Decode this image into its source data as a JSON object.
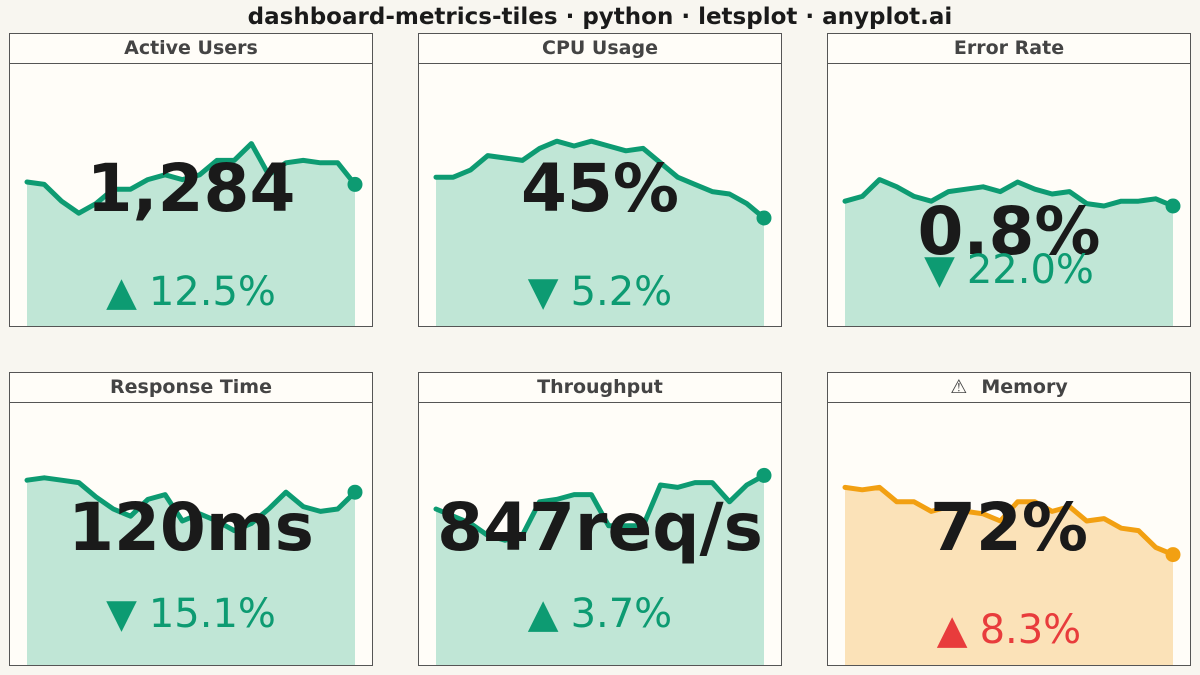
{
  "title": "dashboard-metrics-tiles · python · letsplot · anyplot.ai",
  "colors": {
    "normal_line": "#0d9b72",
    "normal_fill": "#c0e6d6",
    "warn_line": "#f2a012",
    "warn_fill": "#fbe2b8",
    "delta_good": "#0d9b72",
    "delta_bad": "#e83c3c"
  },
  "chart_data": [
    {
      "type": "area",
      "title": "Active Users",
      "value": "1,284",
      "delta": "12.5%",
      "direction": "up",
      "delta_status": "good",
      "status": "normal",
      "ylim": [
        0,
        10
      ],
      "values": [
        6.0,
        5.9,
        5.2,
        4.7,
        5.1,
        5.7,
        5.7,
        6.1,
        6.3,
        6.1,
        6.3,
        6.9,
        6.9,
        7.6,
        6.3,
        6.8,
        6.9,
        6.8,
        6.8,
        5.9
      ]
    },
    {
      "type": "area",
      "title": "CPU Usage",
      "value": "45%",
      "delta": "5.2%",
      "direction": "down",
      "delta_status": "good",
      "status": "normal",
      "ylim": [
        0,
        10
      ],
      "values": [
        6.2,
        6.2,
        6.5,
        7.1,
        7.0,
        6.9,
        7.4,
        7.7,
        7.5,
        7.7,
        7.5,
        7.3,
        7.4,
        6.8,
        6.2,
        5.9,
        5.6,
        5.5,
        5.1,
        4.5
      ]
    },
    {
      "type": "area",
      "title": "Error Rate",
      "value": "0.8%",
      "delta": "22.0%",
      "direction": "down",
      "delta_status": "good",
      "status": "normal",
      "ylim": [
        0,
        10
      ],
      "values": [
        5.2,
        5.4,
        6.1,
        5.8,
        5.4,
        5.2,
        5.6,
        5.7,
        5.8,
        5.6,
        6.0,
        5.7,
        5.5,
        5.6,
        5.1,
        5.0,
        5.2,
        5.2,
        5.3,
        5.0
      ]
    },
    {
      "type": "area",
      "title": "Response Time",
      "value": "120ms",
      "delta": "15.1%",
      "direction": "down",
      "delta_status": "good",
      "status": "normal",
      "ylim": [
        0,
        10
      ],
      "values": [
        7.7,
        7.8,
        7.7,
        7.6,
        7.0,
        6.5,
        6.2,
        6.9,
        7.1,
        6.0,
        6.3,
        6.0,
        5.6,
        5.9,
        6.5,
        7.2,
        6.6,
        6.4,
        6.5,
        7.2
      ]
    },
    {
      "type": "area",
      "title": "Throughput",
      "value": "847req/s",
      "delta": "3.7%",
      "direction": "up",
      "delta_status": "good",
      "status": "normal",
      "ylim": [
        0,
        10
      ],
      "values": [
        6.5,
        6.2,
        5.9,
        5.4,
        5.2,
        5.4,
        6.8,
        6.9,
        7.1,
        7.1,
        5.8,
        5.8,
        5.8,
        7.5,
        7.4,
        7.6,
        7.6,
        6.8,
        7.5,
        7.9
      ]
    },
    {
      "type": "area",
      "title": "Memory",
      "value": "72%",
      "delta": "8.3%",
      "direction": "up",
      "delta_status": "bad",
      "status": "warning",
      "status_icon": "⚠",
      "ylim": [
        0,
        10
      ],
      "values": [
        7.4,
        7.3,
        7.4,
        6.8,
        6.8,
        6.4,
        6.6,
        6.4,
        6.3,
        6.0,
        6.8,
        6.8,
        6.4,
        6.6,
        6.0,
        6.1,
        5.7,
        5.6,
        4.9,
        4.6
      ]
    }
  ]
}
